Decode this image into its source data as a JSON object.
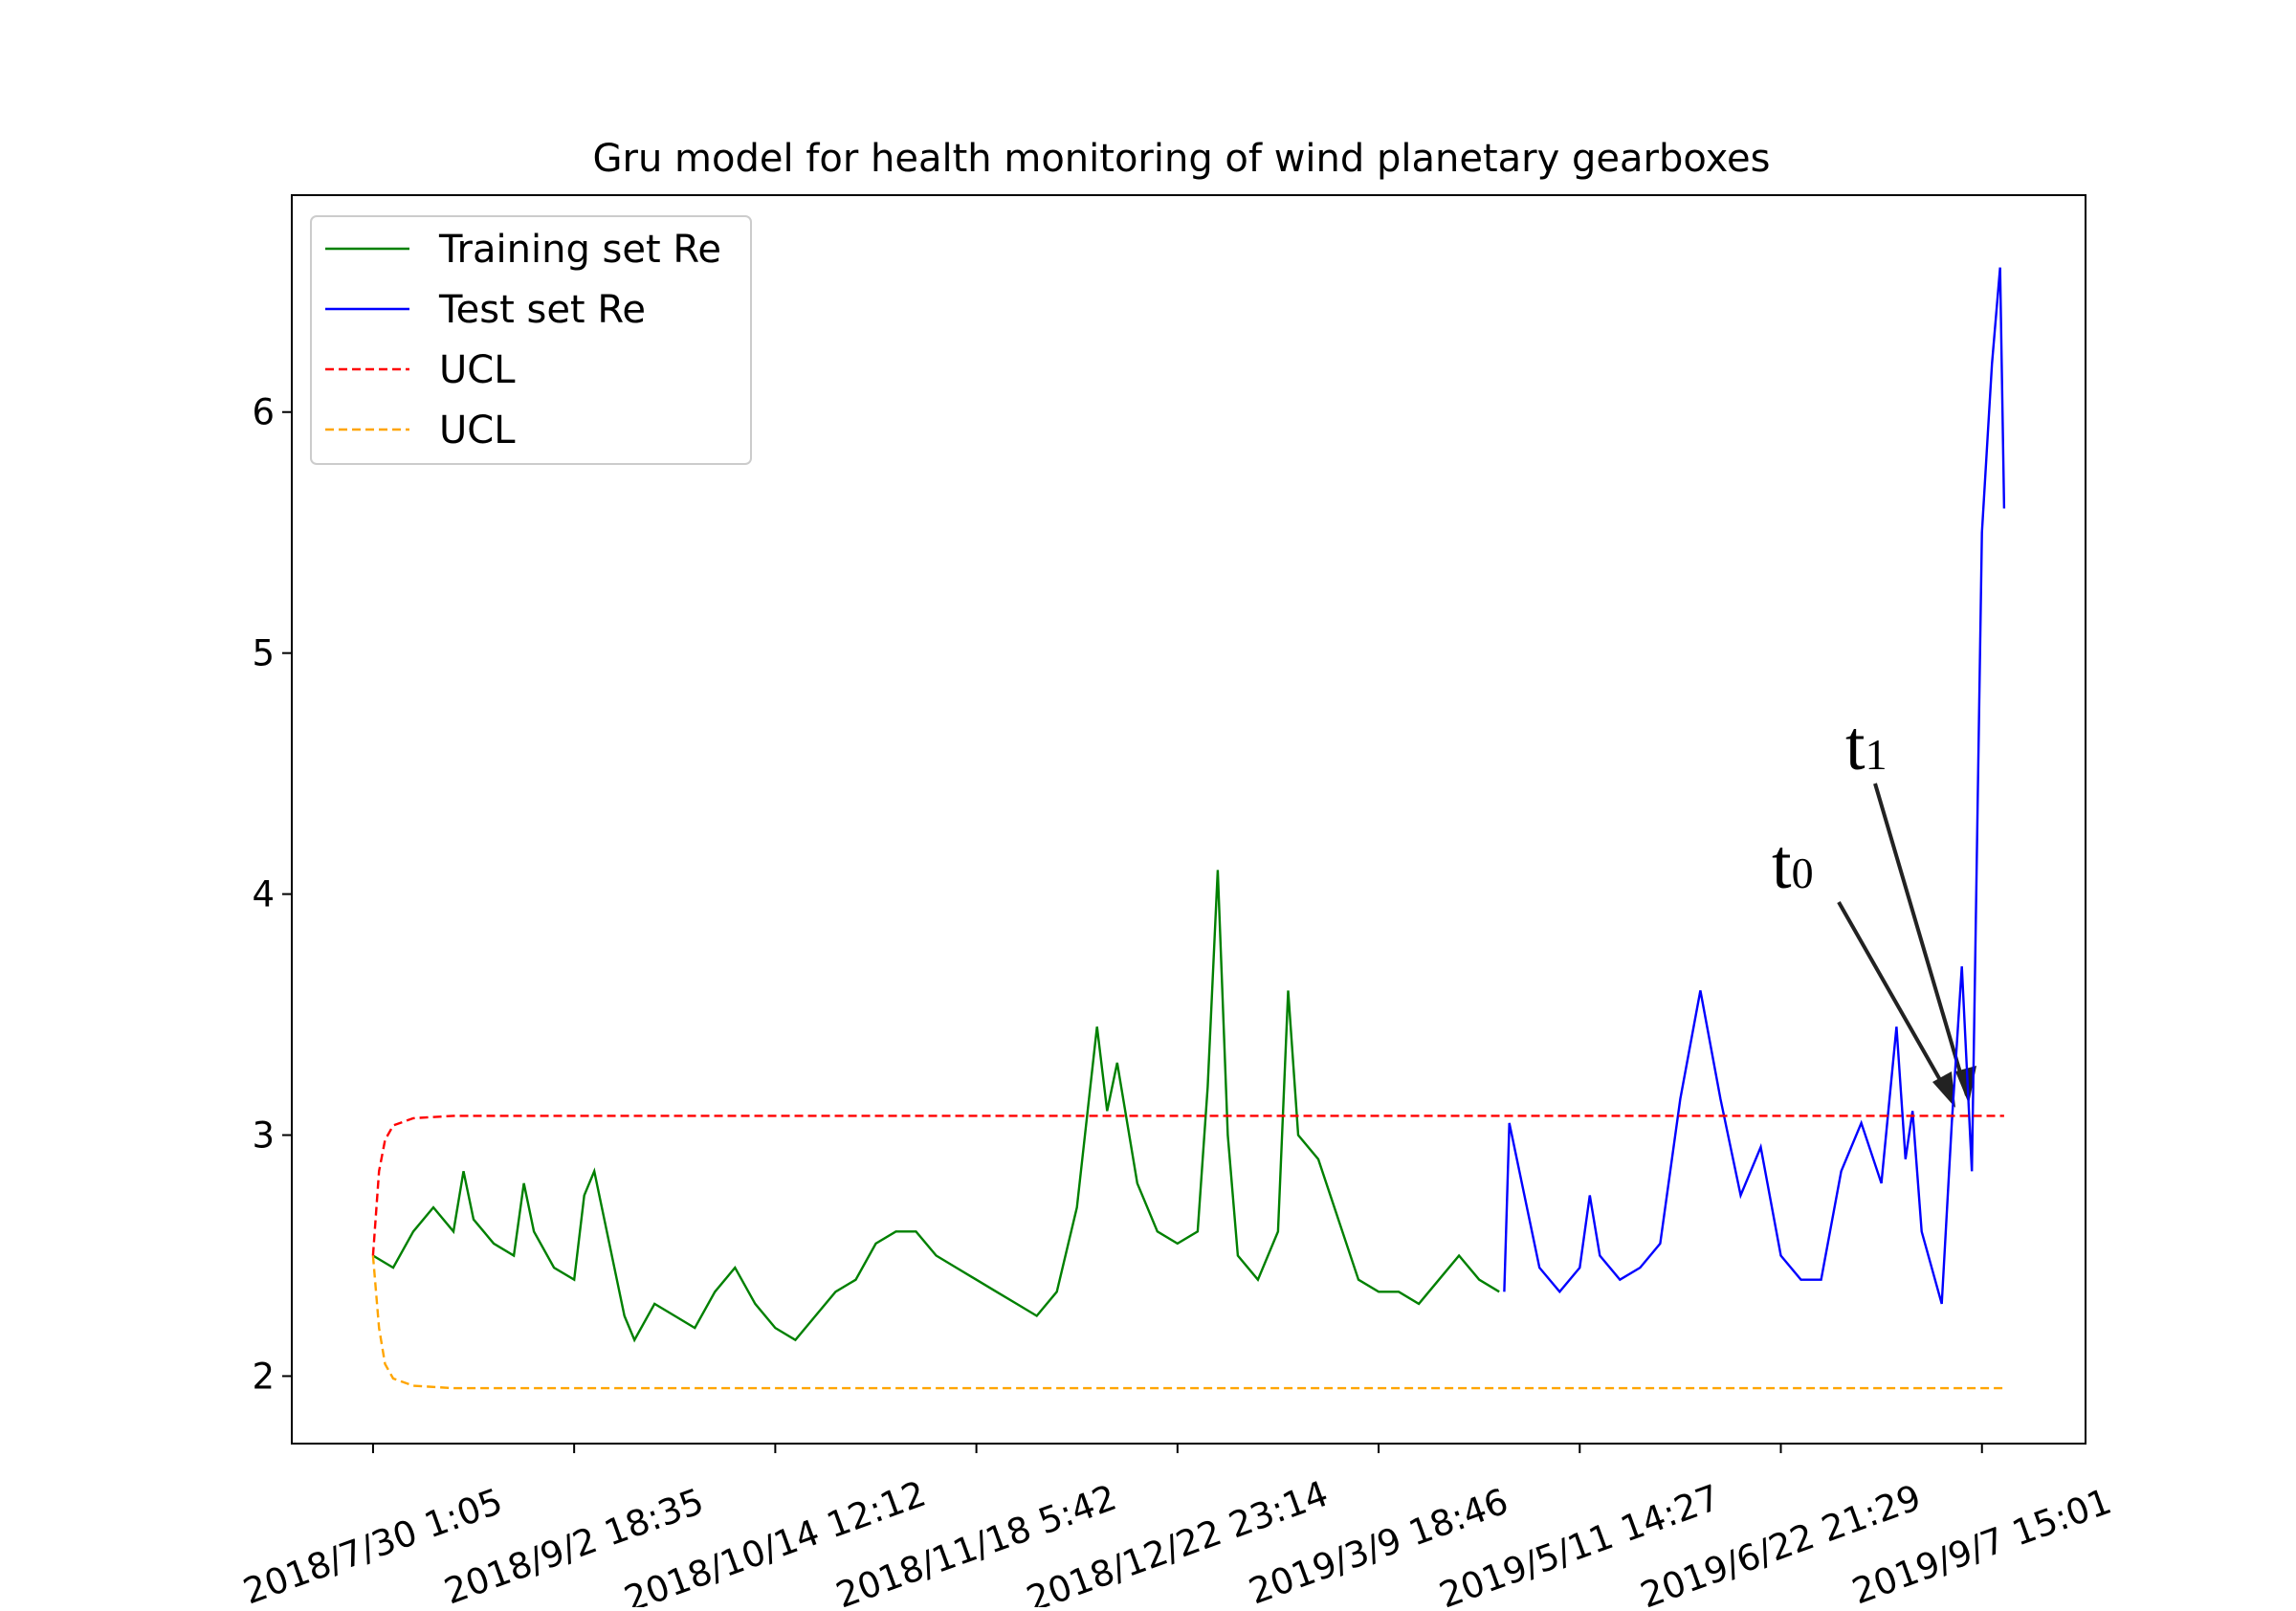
{
  "chart_data": {
    "type": "line",
    "title": "Gru model for health monitoring of wind planetary gearboxes",
    "xlim": [
      -404,
      8515
    ],
    "xticks": [
      {
        "value": 0,
        "label": "2018/7/30 1:05"
      },
      {
        "value": 1000,
        "label": "2018/9/2 18:35"
      },
      {
        "value": 2000,
        "label": "2018/10/14 12:12"
      },
      {
        "value": 3000,
        "label": "2018/11/18 5:42"
      },
      {
        "value": 4000,
        "label": "2018/12/22 23:14"
      },
      {
        "value": 5000,
        "label": "2019/3/9 18:46"
      },
      {
        "value": 6000,
        "label": "2019/5/11 14:27"
      },
      {
        "value": 7000,
        "label": "2019/6/22 21:29"
      },
      {
        "value": 8000,
        "label": "2019/9/7 15:01"
      }
    ],
    "ylim": [
      1.72,
      6.9
    ],
    "yticks": [
      2,
      3,
      4,
      5,
      6
    ],
    "legend": "upper left",
    "series": [
      {
        "name": "Training set Re",
        "color": "#008000",
        "style": "solid",
        "x": [
          0,
          100,
          200,
          300,
          400,
          450,
          500,
          600,
          700,
          750,
          800,
          900,
          1000,
          1050,
          1100,
          1200,
          1250,
          1300,
          1400,
          1500,
          1600,
          1700,
          1800,
          1900,
          2000,
          2100,
          2200,
          2300,
          2400,
          2500,
          2600,
          2700,
          2800,
          2900,
          3000,
          3100,
          3200,
          3300,
          3400,
          3500,
          3600,
          3650,
          3700,
          3800,
          3900,
          4000,
          4100,
          4150,
          4200,
          4250,
          4300,
          4400,
          4500,
          4550,
          4600,
          4700,
          4800,
          4900,
          5000,
          5100,
          5200,
          5300,
          5400,
          5500,
          5600
        ],
        "values": [
          2.5,
          2.45,
          2.6,
          2.7,
          2.6,
          2.85,
          2.65,
          2.55,
          2.5,
          2.8,
          2.6,
          2.45,
          2.4,
          2.75,
          2.85,
          2.45,
          2.25,
          2.15,
          2.3,
          2.25,
          2.2,
          2.35,
          2.45,
          2.3,
          2.2,
          2.15,
          2.25,
          2.35,
          2.4,
          2.55,
          2.6,
          2.6,
          2.5,
          2.45,
          2.4,
          2.35,
          2.3,
          2.25,
          2.35,
          2.7,
          3.45,
          3.1,
          3.3,
          2.8,
          2.6,
          2.55,
          2.6,
          3.2,
          4.1,
          3.0,
          2.5,
          2.4,
          2.6,
          3.6,
          3.0,
          2.9,
          2.65,
          2.4,
          2.35,
          2.35,
          2.3,
          2.4,
          2.5,
          2.4,
          2.35
        ]
      },
      {
        "name": "Test set Re",
        "color": "#0000ff",
        "style": "solid",
        "x": [
          5625,
          5650,
          5700,
          5800,
          5900,
          6000,
          6050,
          6100,
          6200,
          6300,
          6400,
          6500,
          6600,
          6700,
          6800,
          6900,
          7000,
          7100,
          7200,
          7300,
          7400,
          7500,
          7575,
          7620,
          7655,
          7700,
          7800,
          7850,
          7900,
          7950,
          8000,
          8050,
          8090,
          8110
        ],
        "values": [
          2.35,
          3.05,
          2.85,
          2.45,
          2.35,
          2.45,
          2.75,
          2.5,
          2.4,
          2.45,
          2.55,
          3.15,
          3.6,
          3.15,
          2.75,
          2.95,
          2.5,
          2.4,
          2.4,
          2.85,
          3.05,
          2.8,
          3.45,
          2.9,
          3.1,
          2.6,
          2.3,
          3.05,
          3.7,
          2.85,
          5.5,
          6.2,
          6.6,
          5.6
        ]
      },
      {
        "name": "UCL",
        "color": "#ff0000",
        "style": "dashed",
        "x": [
          0,
          30,
          60,
          100,
          200,
          400,
          8110
        ],
        "values": [
          2.5,
          2.85,
          2.98,
          3.04,
          3.07,
          3.08,
          3.08
        ]
      },
      {
        "name": "UCL",
        "color": "#ffa500",
        "style": "dashed",
        "x": [
          0,
          30,
          60,
          100,
          200,
          400,
          8110
        ],
        "values": [
          2.5,
          2.2,
          2.05,
          1.99,
          1.96,
          1.95,
          1.95
        ]
      }
    ],
    "annotations": [
      {
        "text": "t",
        "sub": "0"
      },
      {
        "text": "t",
        "sub": "1"
      }
    ]
  }
}
